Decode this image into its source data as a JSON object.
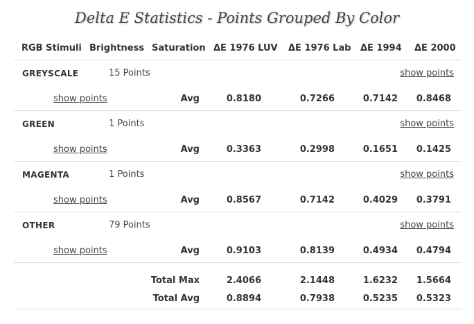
{
  "title": "Delta E Statistics - Points Grouped By Color",
  "columns": [
    "RGB Stimuli",
    "Brightness",
    "Saturation",
    "ΔE 1976 LUV",
    "ΔE 1976 Lab",
    "ΔE 1994",
    "ΔE 2000"
  ],
  "avg_label": "Avg",
  "show_points_label": "show points",
  "groups": [
    {
      "name": "GREYSCALE",
      "count": "15 Points",
      "avg": [
        "0.8180",
        "0.7266",
        "0.7142",
        "0.8468"
      ]
    },
    {
      "name": "GREEN",
      "count": "1 Points",
      "avg": [
        "0.3363",
        "0.2998",
        "0.1651",
        "0.1425"
      ]
    },
    {
      "name": "MAGENTA",
      "count": "1 Points",
      "avg": [
        "0.8567",
        "0.7142",
        "0.4029",
        "0.3791"
      ]
    },
    {
      "name": "OTHER",
      "count": "79 Points",
      "avg": [
        "0.9103",
        "0.8139",
        "0.4934",
        "0.4794"
      ]
    }
  ],
  "totals": {
    "max_label": "Total Max",
    "max": [
      "2.4066",
      "2.1448",
      "1.6232",
      "1.5664"
    ],
    "avg_label": "Total Avg",
    "avg": [
      "0.8894",
      "0.7938",
      "0.5235",
      "0.5323"
    ]
  }
}
